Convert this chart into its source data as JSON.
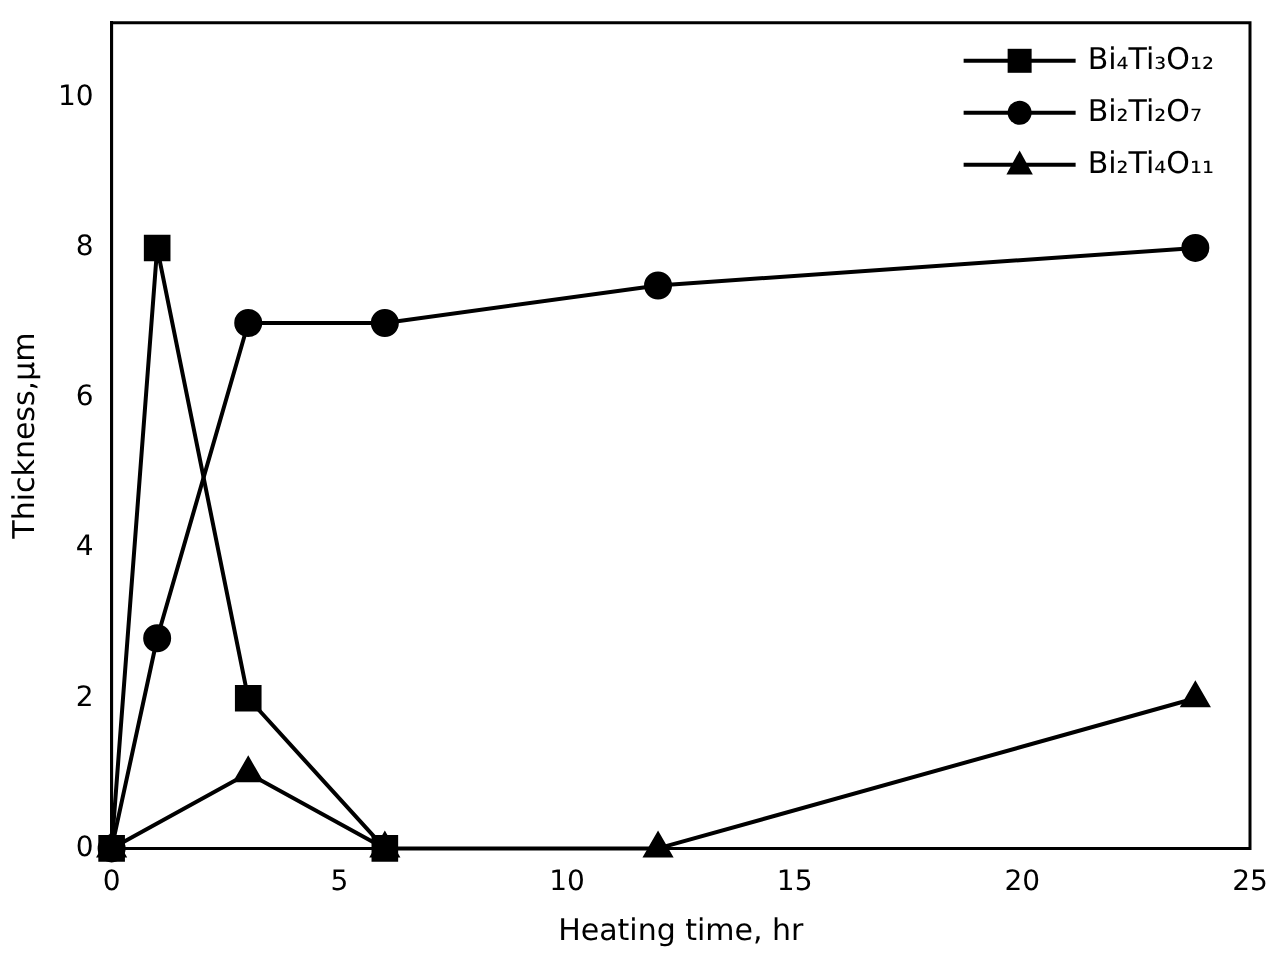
{
  "chart_data": {
    "type": "line",
    "xlabel": "Heating time, hr",
    "ylabel": "Thickness,µm",
    "xlim": [
      0,
      25
    ],
    "xticks": [
      0,
      5,
      10,
      15,
      20,
      25
    ],
    "ylim": [
      0,
      11
    ],
    "yticks": [
      0,
      2,
      4,
      6,
      8,
      10
    ],
    "grid": false,
    "legend": "top right",
    "line_style": "solid",
    "series": [
      {
        "name": "Bi₄Ti₃O₁₂",
        "color": "#000000",
        "marker": "square",
        "x": [
          0,
          1,
          3,
          6
        ],
        "values": [
          0,
          8,
          2,
          0
        ]
      },
      {
        "name": "Bi₂Ti₂O₇",
        "color": "#000000",
        "marker": "circle",
        "x": [
          0,
          1,
          3,
          6,
          12,
          23.8
        ],
        "values": [
          0,
          2.8,
          7,
          7,
          7.5,
          8
        ]
      },
      {
        "name": "Bi₂Ti₄O₁₁",
        "color": "#000000",
        "marker": "triangle",
        "x": [
          0,
          3,
          6,
          12,
          23.8
        ],
        "values": [
          0,
          1,
          0,
          0,
          2
        ]
      }
    ]
  }
}
